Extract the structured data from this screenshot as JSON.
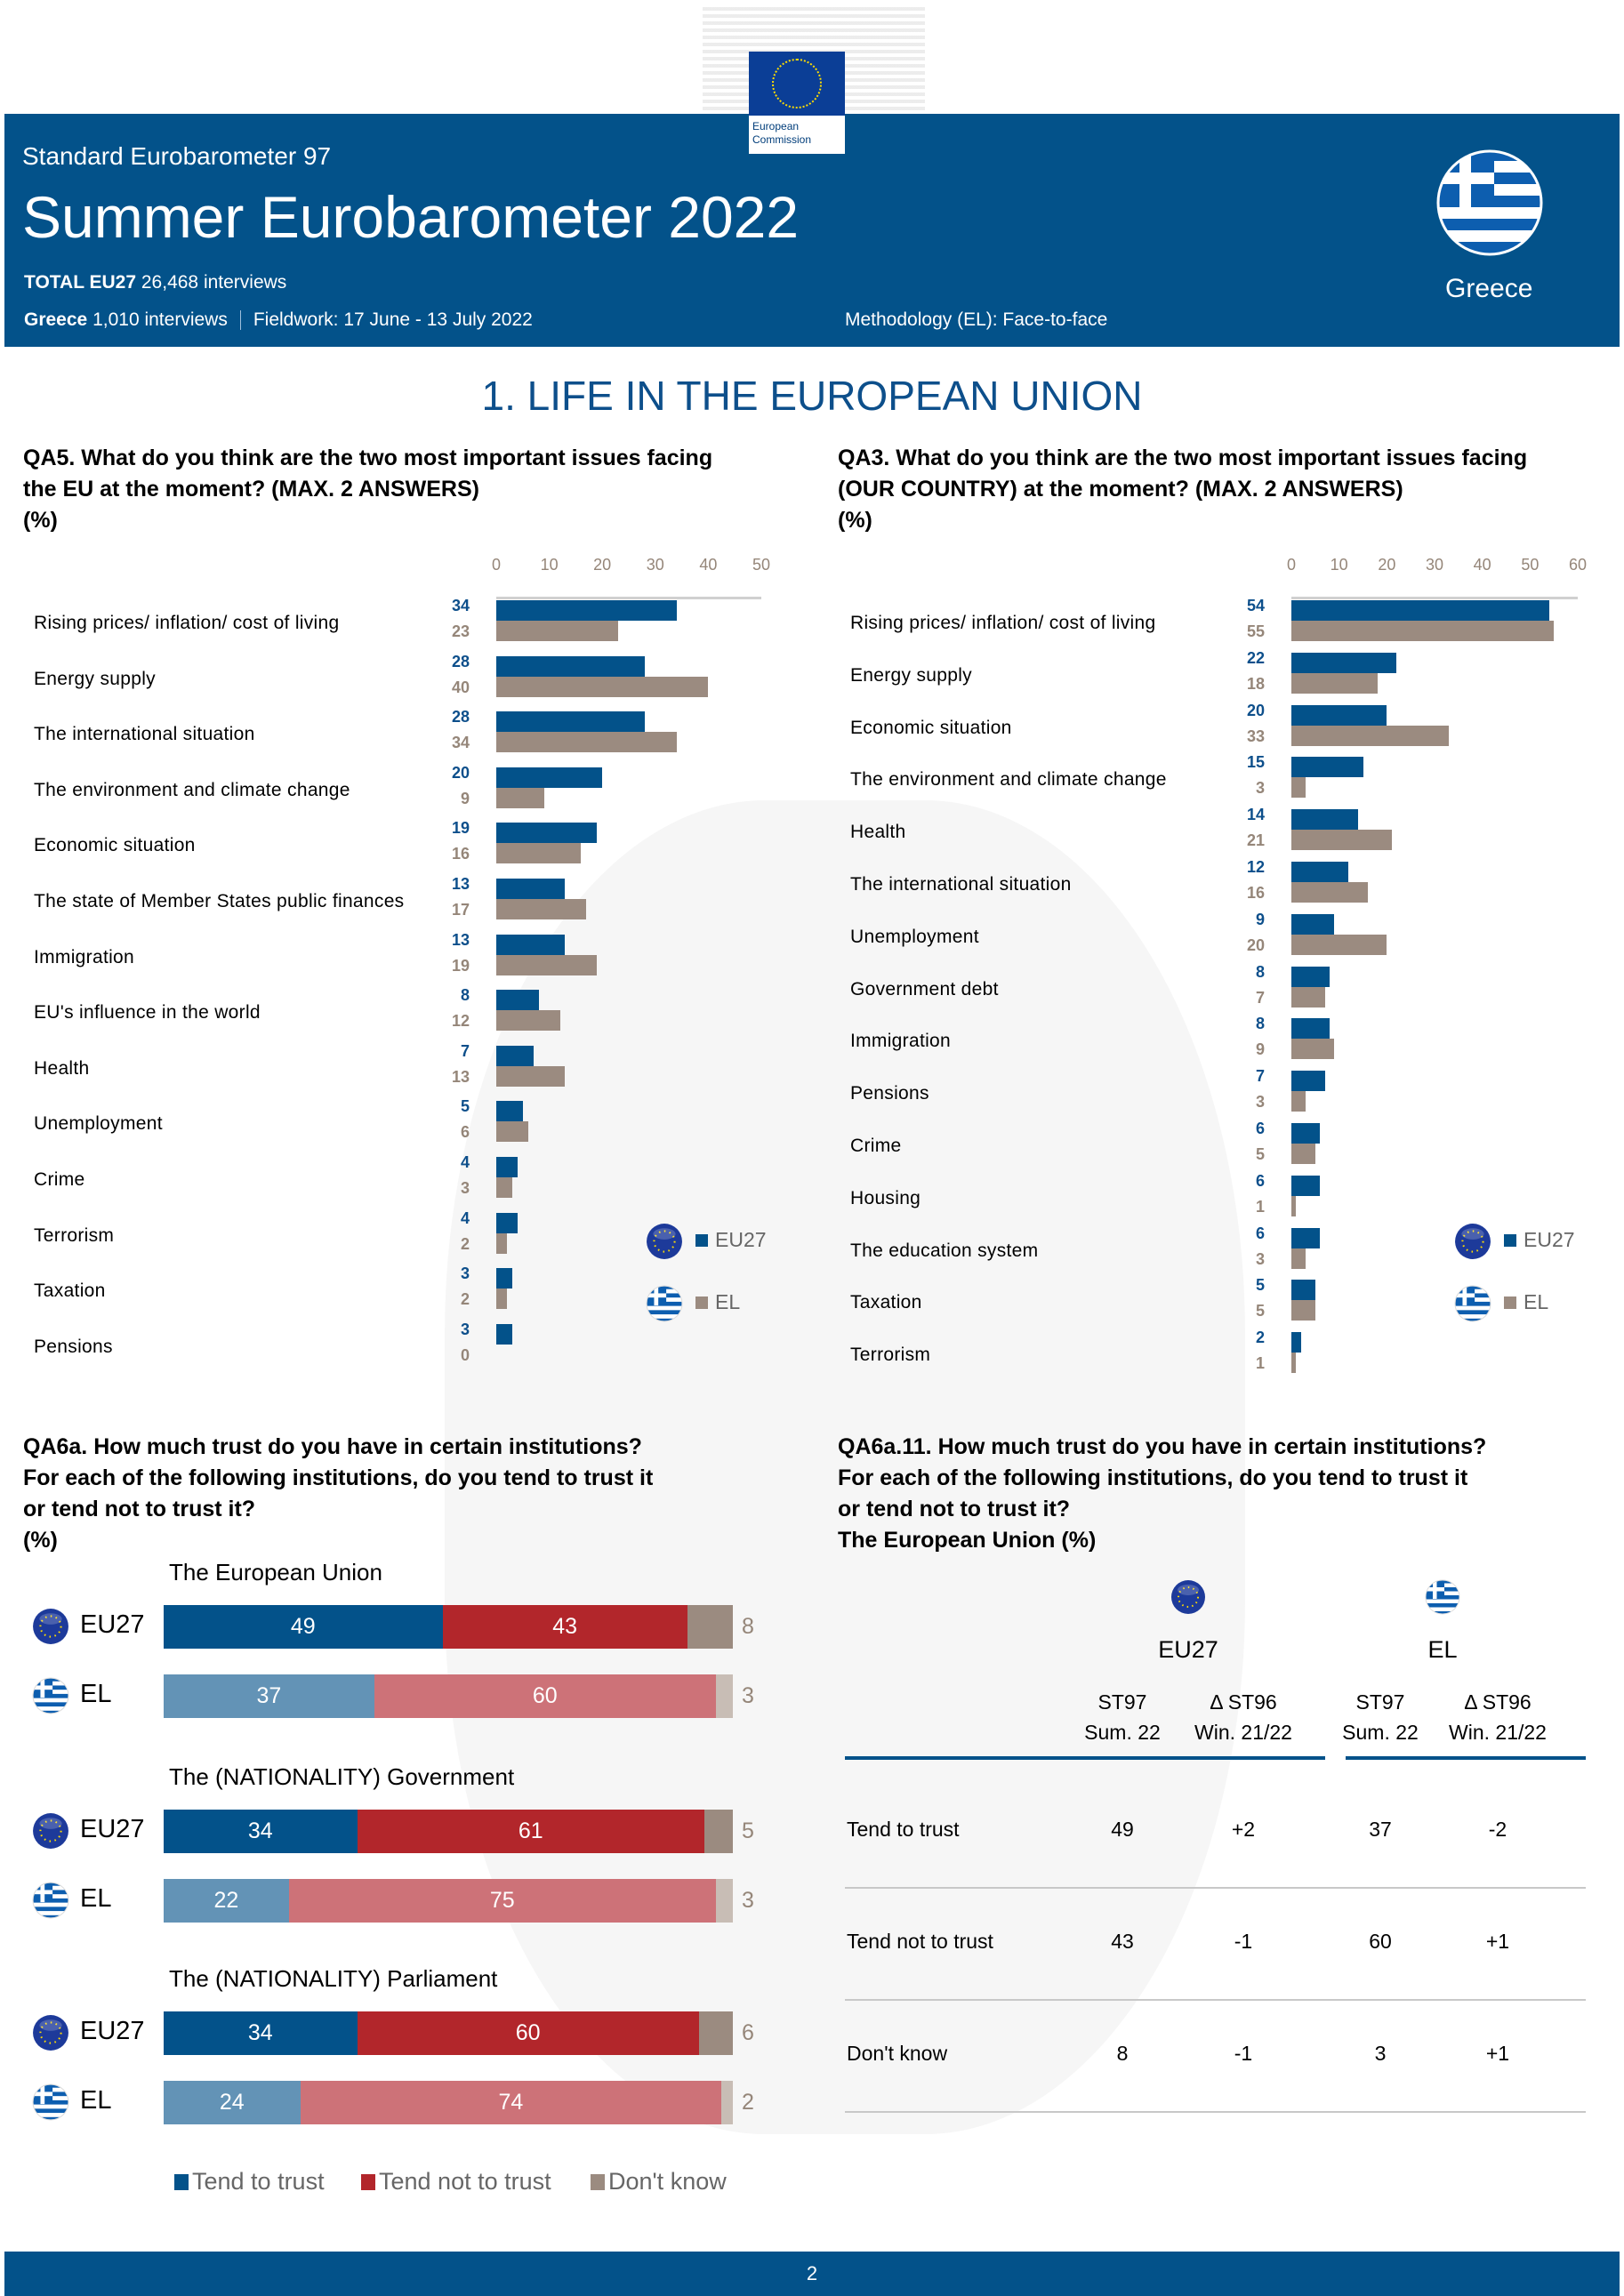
{
  "header": {
    "subtitle": "Standard Eurobarometer 97",
    "title": "Summer Eurobarometer 2022",
    "total_label": "TOTAL EU27",
    "total_value": "26,468 interviews",
    "country_interviews_label": "Greece",
    "country_interviews_value": "1,010 interviews",
    "fieldwork": "Fieldwork: 17 June - 13 July 2022",
    "methodology": "Methodology (EL): Face-to-face",
    "country": "Greece",
    "logo_line1": "European",
    "logo_line2": "Commission"
  },
  "section_title": "1. LIFE IN THE EUROPEAN UNION",
  "legend": {
    "eu": "EU27",
    "el": "EL"
  },
  "colors": {
    "eu": "#03528a",
    "el": "#9b8b80",
    "eu_trust": "#03528a",
    "eu_distrust": "#b2262b",
    "eu_dk": "#9b8b80",
    "el_trust": "#6393b6",
    "el_distrust": "#cd7278",
    "el_dk": "#c8bdb5"
  },
  "chart_data": [
    {
      "type": "bar",
      "title": "QA5. What do you think are the two most important issues facing the EU at the moment? (MAX. 2 ANSWERS)",
      "unit": "(%)",
      "xlim": [
        0,
        50
      ],
      "ticks": [
        "0",
        "10",
        "20",
        "30",
        "40",
        "50"
      ],
      "legend_position": "bottom-right",
      "categories": [
        "Rising prices/ inflation/ cost of living",
        "Energy supply",
        "The international situation",
        "The environment and climate change",
        "Economic situation",
        "The state of Member States public finances",
        "Immigration",
        "EU's influence in the world",
        "Health",
        "Unemployment",
        "Crime",
        "Terrorism",
        "Taxation",
        "Pensions"
      ],
      "series": [
        {
          "name": "EU27",
          "values": [
            34,
            28,
            28,
            20,
            19,
            13,
            13,
            8,
            7,
            5,
            4,
            4,
            3,
            3
          ]
        },
        {
          "name": "EL",
          "values": [
            23,
            40,
            34,
            9,
            16,
            17,
            19,
            12,
            13,
            6,
            3,
            2,
            2,
            0
          ]
        }
      ]
    },
    {
      "type": "bar",
      "title": "QA3. What do you think are the two most important issues facing (OUR COUNTRY) at the moment? (MAX. 2 ANSWERS)",
      "unit": "(%)",
      "xlim": [
        0,
        60
      ],
      "ticks": [
        "0",
        "10",
        "20",
        "30",
        "40",
        "50",
        "60"
      ],
      "legend_position": "bottom-right",
      "categories": [
        "Rising prices/ inflation/ cost of living",
        "Energy supply",
        "Economic situation",
        "The environment and climate change",
        "Health",
        "The international situation",
        "Unemployment",
        "Government debt",
        "Immigration",
        "Pensions",
        "Crime",
        "Housing",
        "The education system",
        "Taxation",
        "Terrorism"
      ],
      "series": [
        {
          "name": "EU27",
          "values": [
            54,
            22,
            20,
            15,
            14,
            12,
            9,
            8,
            8,
            7,
            6,
            6,
            6,
            5,
            2
          ]
        },
        {
          "name": "EL",
          "values": [
            55,
            18,
            33,
            3,
            21,
            16,
            20,
            7,
            9,
            3,
            5,
            1,
            3,
            5,
            1
          ]
        }
      ]
    },
    {
      "type": "bar",
      "stacked": true,
      "title": "QA6a. How much trust do you have in certain institutions? For each of the following institutions, do you tend to trust it or tend not to trust it?",
      "unit": "(%)",
      "legend_position": "bottom",
      "legend": [
        "Tend to trust",
        "Tend not to trust",
        "Don't know"
      ],
      "groups": [
        {
          "title": "The European Union",
          "rows": [
            {
              "name": "EU27",
              "values": [
                49,
                43,
                8
              ]
            },
            {
              "name": "EL",
              "values": [
                37,
                60,
                3
              ]
            }
          ]
        },
        {
          "title": "The (NATIONALITY) Government",
          "rows": [
            {
              "name": "EU27",
              "values": [
                34,
                61,
                5
              ]
            },
            {
              "name": "EL",
              "values": [
                22,
                75,
                3
              ]
            }
          ]
        },
        {
          "title": "The (NATIONALITY) Parliament",
          "rows": [
            {
              "name": "EU27",
              "values": [
                34,
                60,
                6
              ]
            },
            {
              "name": "EL",
              "values": [
                24,
                74,
                2
              ]
            }
          ]
        }
      ]
    },
    {
      "type": "table",
      "title": "QA6a.11. How much trust do you have in certain institutions? For each of the following institutions, do you tend to trust it or tend not to trust it?",
      "subtitle": "The European Union (%)",
      "groups": [
        "EU27",
        "EL"
      ],
      "col_headers": [
        [
          "ST97",
          "Sum. 22"
        ],
        [
          "Δ ST96",
          "Win. 21/22"
        ],
        [
          "ST97",
          "Sum. 22"
        ],
        [
          "Δ ST96",
          "Win. 21/22"
        ]
      ],
      "rows": [
        {
          "label": "Tend to trust",
          "cells": [
            "49",
            "+2",
            "37",
            "-2"
          ]
        },
        {
          "label": "Tend not to trust",
          "cells": [
            "43",
            "-1",
            "60",
            "+1"
          ]
        },
        {
          "label": "Don't know",
          "cells": [
            "8",
            "-1",
            "3",
            "+1"
          ]
        }
      ]
    }
  ],
  "qa5": {
    "title_l1": "QA5. What do you think are the two most important issues facing",
    "title_l2": "the EU at the moment? (MAX. 2 ANSWERS)",
    "title_l3": "(%)"
  },
  "qa3": {
    "title_l1": "QA3. What do you think are the two most important issues facing",
    "title_l2": "(OUR COUNTRY) at the moment? (MAX. 2 ANSWERS)",
    "title_l3": "(%)"
  },
  "qa6a": {
    "title_l1": "QA6a. How much trust do you have in certain institutions?",
    "title_l2": "For each of the following institutions, do you tend to trust it",
    "title_l3": "or tend not to trust it?",
    "title_l4": "(%)"
  },
  "qa6a11": {
    "title_l1": "QA6a.11. How much trust do you have in certain institutions?",
    "title_l2": "For each of the following institutions, do you tend to trust it",
    "title_l3": "or tend not to trust it?",
    "title_l4": "The European Union (%)"
  },
  "footer": {
    "page": "2"
  }
}
